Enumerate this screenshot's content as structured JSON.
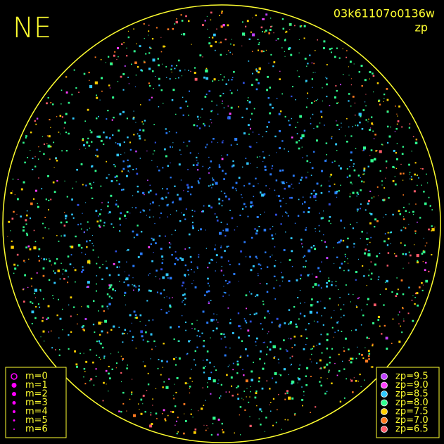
{
  "corner_label": "NE",
  "header": {
    "frame_id": "03k61107o0136w",
    "mode": "zp"
  },
  "magnitude_legend": {
    "items": [
      "m=0",
      "m=1",
      "m=2",
      "m=3",
      "m=4",
      "m=5",
      "m=6"
    ],
    "color": "#ff00ff"
  },
  "zp_legend": {
    "items": [
      {
        "label": "zp=9.5",
        "color": "#c040ff"
      },
      {
        "label": "zp=9.0",
        "color": "#ff40ff"
      },
      {
        "label": "zp=8.5",
        "color": "#30c8ff"
      },
      {
        "label": "zp=8.0",
        "color": "#30ff90"
      },
      {
        "label": "zp=7.5",
        "color": "#ffd000"
      },
      {
        "label": "zp=7.0",
        "color": "#ff7a20"
      },
      {
        "label": "zp=6.5",
        "color": "#ff5a6a"
      }
    ]
  }
}
